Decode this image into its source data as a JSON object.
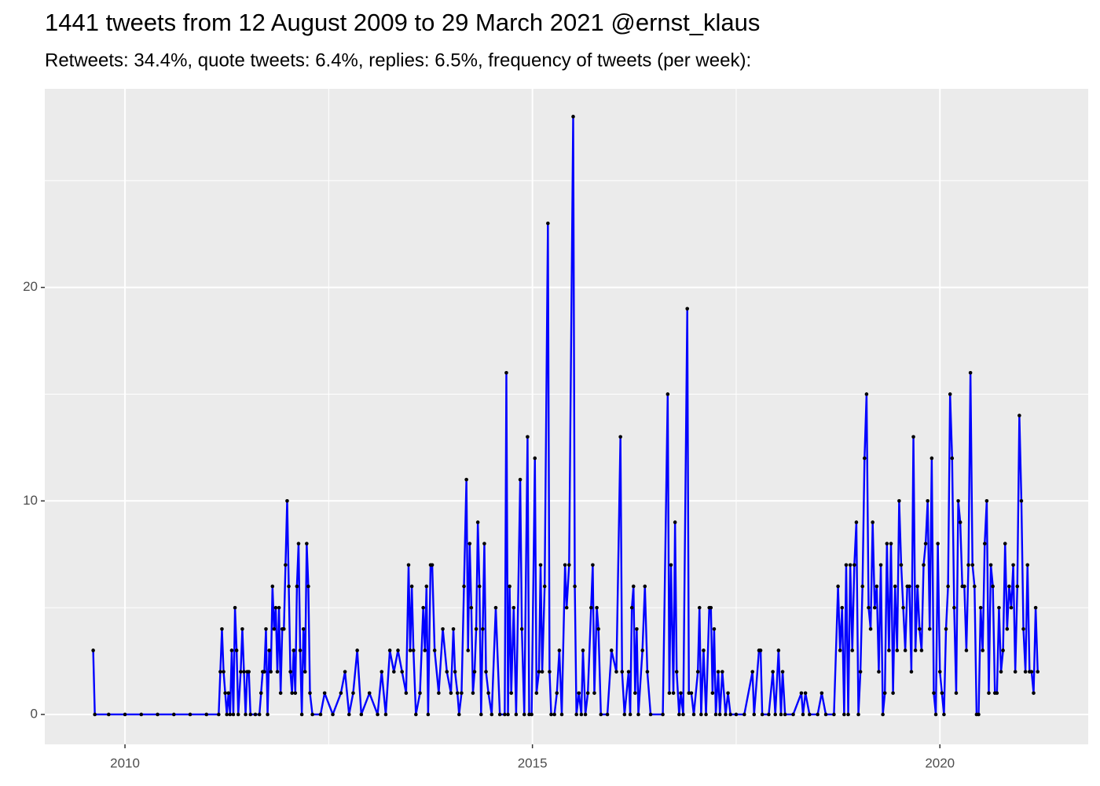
{
  "chart_data": {
    "type": "line",
    "title": "1441 tweets from 12 August 2009 to 29 March 2021 @ernst_klaus",
    "subtitle": "Retweets: 34.4%, quote tweets: 6.4%, replies: 6.5%, frequency of tweets (per week):",
    "xlim": [
      2009.016,
      2021.82
    ],
    "xticks": [
      2010,
      2015,
      2020
    ],
    "xminor": [
      2012.5,
      2017.5
    ],
    "ylim": [
      -1.4,
      29.3
    ],
    "yticks": [
      0,
      10,
      20
    ],
    "yminor": [
      5,
      15,
      25
    ],
    "grid": true,
    "background": "#ebebeb",
    "marker_color": "#000000",
    "x": [
      2009.61,
      2009.63,
      2009.8,
      2010,
      2010.2,
      2010.4,
      2010.6,
      2010.8,
      2011,
      2011.15,
      2011.17,
      2011.19,
      2011.21,
      2011.23,
      2011.25,
      2011.27,
      2011.29,
      2011.31,
      2011.33,
      2011.35,
      2011.37,
      2011.39,
      2011.42,
      2011.44,
      2011.46,
      2011.48,
      2011.5,
      2011.52,
      2011.54,
      2011.6,
      2011.65,
      2011.67,
      2011.69,
      2011.71,
      2011.73,
      2011.75,
      2011.77,
      2011.79,
      2011.81,
      2011.83,
      2011.85,
      2011.87,
      2011.89,
      2011.91,
      2011.93,
      2011.95,
      2011.97,
      2011.99,
      2012.01,
      2012.03,
      2012.05,
      2012.07,
      2012.09,
      2012.11,
      2012.13,
      2012.15,
      2012.17,
      2012.19,
      2012.21,
      2012.23,
      2012.25,
      2012.27,
      2012.3,
      2012.4,
      2012.45,
      2012.55,
      2012.65,
      2012.7,
      2012.75,
      2012.8,
      2012.85,
      2012.9,
      2013,
      2013.1,
      2013.15,
      2013.2,
      2013.25,
      2013.3,
      2013.35,
      2013.4,
      2013.45,
      2013.48,
      2013.5,
      2013.52,
      2013.54,
      2013.57,
      2013.62,
      2013.66,
      2013.68,
      2013.7,
      2013.72,
      2013.75,
      2013.77,
      2013.8,
      2013.85,
      2013.9,
      2013.95,
      2014,
      2014.03,
      2014.05,
      2014.08,
      2014.1,
      2014.13,
      2014.16,
      2014.19,
      2014.21,
      2014.23,
      2014.25,
      2014.27,
      2014.29,
      2014.31,
      2014.33,
      2014.35,
      2014.37,
      2014.39,
      2014.41,
      2014.43,
      2014.46,
      2014.5,
      2014.55,
      2014.6,
      2014.66,
      2014.68,
      2014.7,
      2014.72,
      2014.74,
      2014.77,
      2014.8,
      2014.85,
      2014.87,
      2014.9,
      2014.94,
      2014.96,
      2014.99,
      2015.03,
      2015.05,
      2015.08,
      2015.1,
      2015.12,
      2015.15,
      2015.19,
      2015.21,
      2015.23,
      2015.27,
      2015.3,
      2015.33,
      2015.36,
      2015.4,
      2015.42,
      2015.45,
      2015.5,
      2015.52,
      2015.54,
      2015.57,
      2015.6,
      2015.62,
      2015.65,
      2015.68,
      2015.72,
      2015.74,
      2015.76,
      2015.79,
      2015.81,
      2015.84,
      2015.92,
      2015.97,
      2016.03,
      2016.08,
      2016.1,
      2016.13,
      2016.18,
      2016.2,
      2016.22,
      2016.24,
      2016.26,
      2016.28,
      2016.3,
      2016.35,
      2016.38,
      2016.41,
      2016.45,
      2016.6,
      2016.66,
      2016.68,
      2016.7,
      2016.73,
      2016.75,
      2016.77,
      2016.8,
      2016.82,
      2016.85,
      2016.9,
      2016.92,
      2016.95,
      2016.98,
      2017.03,
      2017.05,
      2017.07,
      2017.1,
      2017.13,
      2017.17,
      2017.19,
      2017.21,
      2017.23,
      2017.25,
      2017.28,
      2017.3,
      2017.33,
      2017.37,
      2017.4,
      2017.43,
      2017.5,
      2017.6,
      2017.7,
      2017.72,
      2017.78,
      2017.8,
      2017.82,
      2017.9,
      2017.95,
      2017.98,
      2018.02,
      2018.05,
      2018.07,
      2018.1,
      2018.2,
      2018.3,
      2018.32,
      2018.35,
      2018.4,
      2018.5,
      2018.55,
      2018.6,
      2018.7,
      2018.75,
      2018.775,
      2018.8,
      2018.825,
      2018.85,
      2018.875,
      2018.9,
      2018.925,
      2018.95,
      2018.975,
      2019,
      2019.025,
      2019.05,
      2019.075,
      2019.1,
      2019.125,
      2019.15,
      2019.175,
      2019.2,
      2019.225,
      2019.25,
      2019.275,
      2019.3,
      2019.325,
      2019.35,
      2019.375,
      2019.4,
      2019.425,
      2019.45,
      2019.475,
      2019.5,
      2019.525,
      2019.55,
      2019.575,
      2019.6,
      2019.625,
      2019.65,
      2019.675,
      2019.7,
      2019.725,
      2019.75,
      2019.775,
      2019.8,
      2019.825,
      2019.85,
      2019.875,
      2019.9,
      2019.925,
      2019.95,
      2019.975,
      2020,
      2020.025,
      2020.05,
      2020.075,
      2020.1,
      2020.125,
      2020.15,
      2020.175,
      2020.2,
      2020.225,
      2020.25,
      2020.275,
      2020.3,
      2020.325,
      2020.35,
      2020.375,
      2020.4,
      2020.425,
      2020.45,
      2020.475,
      2020.5,
      2020.525,
      2020.55,
      2020.575,
      2020.6,
      2020.625,
      2020.65,
      2020.675,
      2020.7,
      2020.725,
      2020.75,
      2020.775,
      2020.8,
      2020.825,
      2020.85,
      2020.875,
      2020.9,
      2020.925,
      2020.95,
      2020.975,
      2021,
      2021.025,
      2021.05,
      2021.075,
      2021.1,
      2021.125,
      2021.15,
      2021.175,
      2021.2
    ],
    "series": [
      {
        "color": "#0000ff",
        "values": [
          3,
          0,
          0,
          0,
          0,
          0,
          0,
          0,
          0,
          0,
          2,
          4,
          2,
          1,
          0,
          1,
          0,
          3,
          0,
          5,
          3,
          0,
          2,
          4,
          2,
          0,
          2,
          2,
          0,
          0,
          0,
          1,
          2,
          2,
          4,
          0,
          3,
          2,
          6,
          4,
          5,
          2,
          5,
          1,
          4,
          4,
          7,
          10,
          6,
          2,
          1,
          3,
          1,
          6,
          8,
          3,
          0,
          4,
          2,
          8,
          6,
          1,
          0,
          0,
          1,
          0,
          1,
          2,
          0,
          1,
          3,
          0,
          1,
          0,
          2,
          0,
          3,
          2,
          3,
          2,
          1,
          7,
          3,
          6,
          3,
          0,
          1,
          5,
          3,
          6,
          0,
          7,
          7,
          3,
          1,
          4,
          2,
          1,
          4,
          2,
          1,
          0,
          1,
          6,
          11,
          3,
          8,
          5,
          1,
          2,
          4,
          9,
          6,
          0,
          4,
          8,
          2,
          1,
          0,
          5,
          0,
          0,
          16,
          0,
          6,
          1,
          5,
          0,
          11,
          4,
          0,
          13,
          0,
          0,
          12,
          1,
          2,
          7,
          2,
          6,
          23,
          2,
          0,
          0,
          1,
          3,
          0,
          7,
          5,
          7,
          28,
          6,
          0,
          1,
          0,
          3,
          0,
          1,
          5,
          7,
          1,
          5,
          4,
          0,
          0,
          3,
          2,
          13,
          2,
          0,
          2,
          0,
          5,
          6,
          1,
          4,
          0,
          3,
          6,
          2,
          0,
          0,
          15,
          1,
          7,
          1,
          9,
          2,
          0,
          1,
          0,
          19,
          1,
          1,
          0,
          2,
          5,
          0,
          3,
          0,
          5,
          5,
          1,
          4,
          0,
          2,
          0,
          2,
          0,
          1,
          0,
          0,
          0,
          2,
          0,
          3,
          3,
          0,
          0,
          2,
          0,
          3,
          0,
          2,
          0,
          0,
          1,
          0,
          1,
          0,
          0,
          1,
          0,
          0,
          6,
          3,
          5,
          0,
          7,
          0,
          7,
          3,
          7,
          9,
          0,
          2,
          6,
          12,
          15,
          5,
          4,
          9,
          5,
          6,
          2,
          7,
          0,
          1,
          8,
          3,
          8,
          1,
          6,
          3,
          10,
          7,
          5,
          3,
          6,
          6,
          2,
          13,
          3,
          6,
          4,
          3,
          7,
          8,
          10,
          4,
          12,
          1,
          0,
          8,
          2,
          1,
          0,
          4,
          6,
          15,
          12,
          5,
          1,
          10,
          9,
          6,
          6,
          3,
          7,
          16,
          7,
          6,
          0,
          0,
          5,
          3,
          8,
          10,
          1,
          7,
          6,
          1,
          1,
          5,
          2,
          3,
          8,
          4,
          6,
          5,
          7,
          2,
          6,
          14,
          10,
          4,
          2,
          7,
          2,
          2,
          1,
          5,
          2
        ]
      }
    ]
  }
}
